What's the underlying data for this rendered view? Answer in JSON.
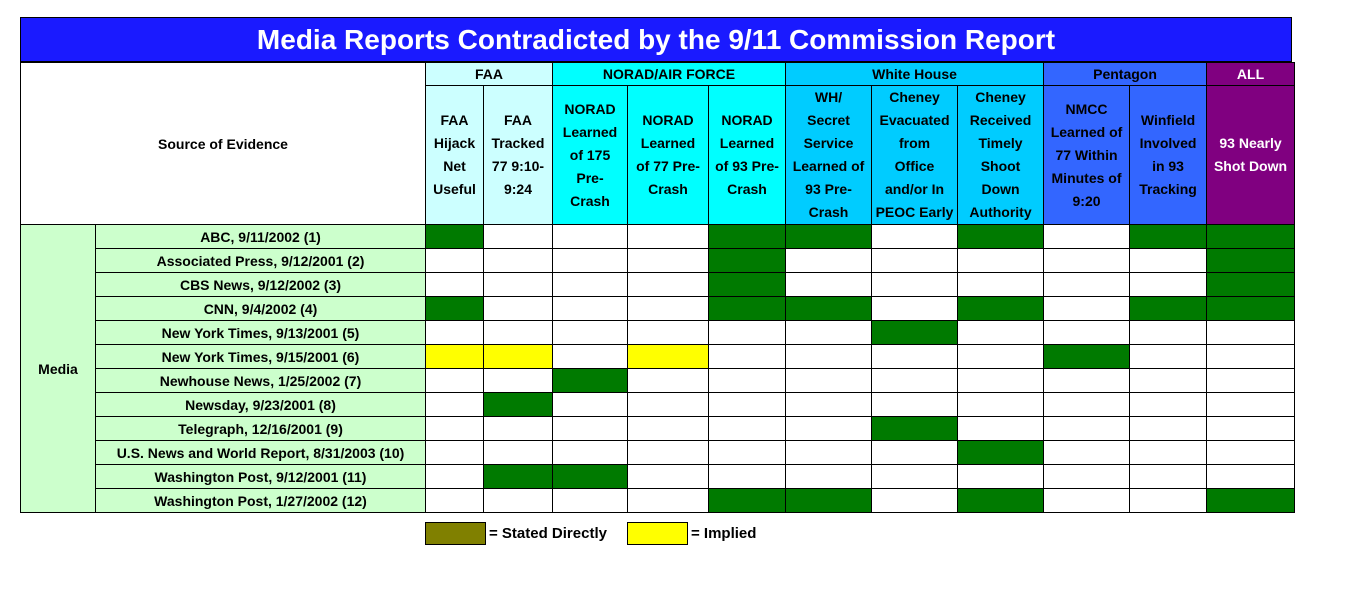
{
  "title": "Media Reports Contradicted by the 9/11 Commission Report",
  "source_header": "Source of Evidence",
  "category": "Media",
  "colors": {
    "stated": "#007a00",
    "implied": "#ffff00",
    "legend_stated": "#808000",
    "faa": "#ccffff",
    "norad": "#00ffff",
    "white_house": "#00ccff",
    "pentagon": "#3366ff",
    "all": "#800080"
  },
  "groups": [
    {
      "label": "FAA",
      "span": 2,
      "cls": "c-faa"
    },
    {
      "label": "NORAD/AIR FORCE",
      "span": 3,
      "cls": "c-norad"
    },
    {
      "label": "White House",
      "span": 3,
      "cls": "c-wh"
    },
    {
      "label": "Pentagon",
      "span": 2,
      "cls": "c-pent"
    },
    {
      "label": "ALL",
      "span": 1,
      "cls": "c-all"
    }
  ],
  "columns": [
    {
      "lines": [
        "FAA",
        "Hijack",
        "Net",
        "Useful"
      ],
      "cls": "c-faa"
    },
    {
      "lines": [
        "FAA",
        "Tracked",
        "77 9:10-",
        "9:24"
      ],
      "cls": "c-faa"
    },
    {
      "lines": [
        "NORAD",
        "Learned",
        "of 175",
        "Pre-",
        "Crash"
      ],
      "cls": "c-norad"
    },
    {
      "lines": [
        "NORAD",
        "Learned",
        "of 77 Pre-",
        "Crash"
      ],
      "cls": "c-norad"
    },
    {
      "lines": [
        "NORAD",
        "Learned",
        "of 93 Pre-",
        "Crash"
      ],
      "cls": "c-norad"
    },
    {
      "lines": [
        "WH/",
        "Secret",
        "Service",
        "Learned of",
        "93 Pre-",
        "Crash"
      ],
      "cls": "c-wh"
    },
    {
      "lines": [
        "Cheney",
        "Evacuated",
        "from",
        "Office",
        "and/or In",
        "PEOC Early"
      ],
      "cls": "c-wh"
    },
    {
      "lines": [
        "Cheney",
        "Received",
        "Timely",
        "Shoot",
        "Down",
        "Authority"
      ],
      "cls": "c-wh"
    },
    {
      "lines": [
        "NMCC",
        "Learned of",
        "77 Within",
        "Minutes of",
        "9:20"
      ],
      "cls": "c-pent"
    },
    {
      "lines": [
        "Winfield",
        "Involved",
        "in 93",
        "Tracking"
      ],
      "cls": "c-pent"
    },
    {
      "lines": [
        "93 Nearly",
        "Shot Down"
      ],
      "cls": "c-all"
    }
  ],
  "rows": [
    {
      "source": "ABC, 9/11/2002 (1)",
      "cells": [
        "S",
        "",
        "",
        "",
        "S",
        "S",
        "",
        "S",
        "",
        "S",
        "S"
      ]
    },
    {
      "source": "Associated Press, 9/12/2001 (2)",
      "cells": [
        "",
        "",
        "",
        "",
        "S",
        "",
        "",
        "",
        "",
        "",
        "S"
      ]
    },
    {
      "source": "CBS News, 9/12/2002 (3)",
      "cells": [
        "",
        "",
        "",
        "",
        "S",
        "",
        "",
        "",
        "",
        "",
        "S"
      ]
    },
    {
      "source": "CNN, 9/4/2002 (4)",
      "cells": [
        "S",
        "",
        "",
        "",
        "S",
        "S",
        "",
        "S",
        "",
        "S",
        "S"
      ]
    },
    {
      "source": "New York Times, 9/13/2001 (5)",
      "cells": [
        "",
        "",
        "",
        "",
        "",
        "",
        "S",
        "",
        "",
        "",
        ""
      ]
    },
    {
      "source": "New York Times, 9/15/2001 (6)",
      "cells": [
        "I",
        "I",
        "",
        "I",
        "",
        "",
        "",
        "",
        "S",
        "",
        ""
      ]
    },
    {
      "source": "Newhouse News, 1/25/2002 (7)",
      "cells": [
        "",
        "",
        "S",
        "",
        "",
        "",
        "",
        "",
        "",
        "",
        ""
      ]
    },
    {
      "source": "Newsday, 9/23/2001 (8)",
      "cells": [
        "",
        "S",
        "",
        "",
        "",
        "",
        "",
        "",
        "",
        "",
        ""
      ]
    },
    {
      "source": "Telegraph, 12/16/2001 (9)",
      "cells": [
        "",
        "",
        "",
        "",
        "",
        "",
        "S",
        "",
        "",
        "",
        ""
      ]
    },
    {
      "source": "U.S. News and World Report, 8/31/2003 (10)",
      "cells": [
        "",
        "",
        "",
        "",
        "",
        "",
        "",
        "S",
        "",
        "",
        ""
      ]
    },
    {
      "source": "Washington Post, 9/12/2001 (11)",
      "cells": [
        "",
        "S",
        "S",
        "",
        "",
        "",
        "",
        "",
        "",
        "",
        ""
      ]
    },
    {
      "source": "Washington Post, 1/27/2002 (12)",
      "cells": [
        "",
        "",
        "",
        "",
        "S",
        "S",
        "",
        "S",
        "",
        "",
        "S"
      ]
    }
  ],
  "legend": {
    "stated_label": "= Stated Directly",
    "implied_label": "= Implied"
  }
}
